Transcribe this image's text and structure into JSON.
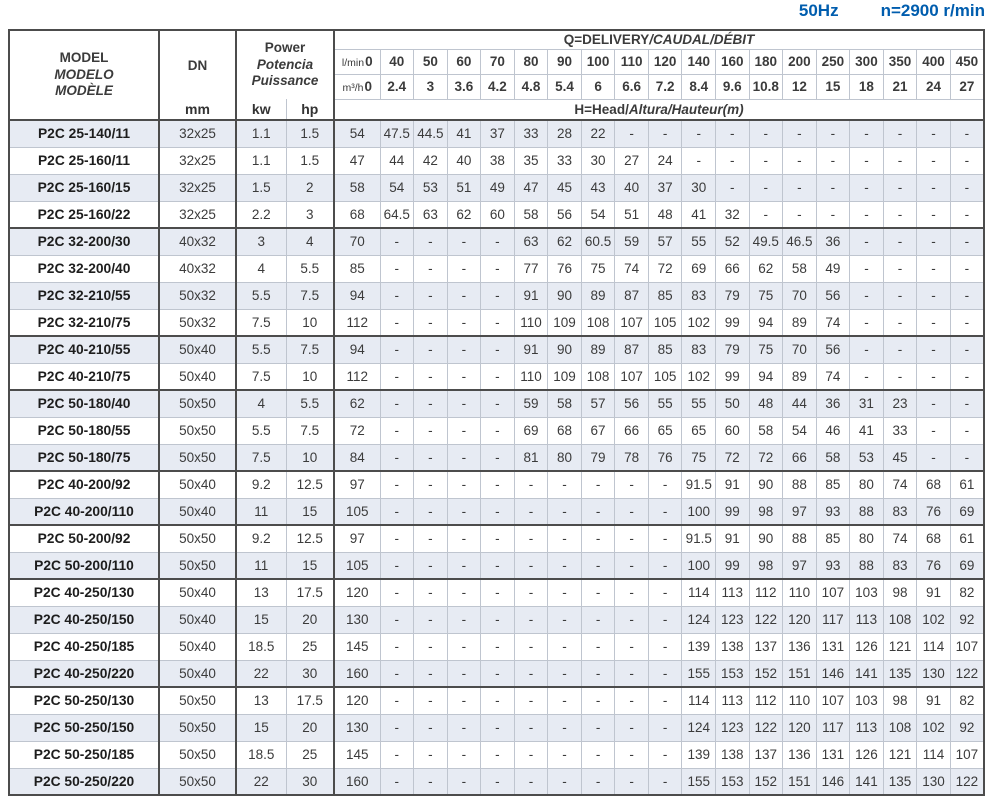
{
  "title": {
    "frequency": "50Hz",
    "speed": "n=2900 r/min"
  },
  "header": {
    "model_lines": [
      "MODEL",
      "MODELO",
      "MODÈLE"
    ],
    "dn_label": "DN",
    "dn_unit": "mm",
    "power_lines": [
      "Power",
      "Potencia",
      "Puissance"
    ],
    "power_units": [
      "kw",
      "hp"
    ],
    "delivery_plain": "Q=DELIVERY",
    "delivery_italic": "/CAUDAL/DÉBIT",
    "lmin_label": "l/min",
    "m3h_label": "m³/h",
    "lmin_values": [
      "0",
      "40",
      "50",
      "60",
      "70",
      "80",
      "90",
      "100",
      "110",
      "120",
      "140",
      "160",
      "180",
      "200",
      "250",
      "300",
      "350",
      "400",
      "450"
    ],
    "m3h_values": [
      "0",
      "2.4",
      "3",
      "3.6",
      "4.2",
      "4.8",
      "5.4",
      "6",
      "6.6",
      "7.2",
      "8.4",
      "9.6",
      "10.8",
      "12",
      "15",
      "18",
      "21",
      "24",
      "27"
    ],
    "head_plain": "H=Head/",
    "head_italic": "Altura/Hauteur(m)"
  },
  "rows": [
    {
      "model": "P2C 25-140/11",
      "dn": "32x25",
      "kw": "1.1",
      "hp": "1.5",
      "group_start": false,
      "heads": [
        "54",
        "47.5",
        "44.5",
        "41",
        "37",
        "33",
        "28",
        "22",
        "-",
        "-",
        "-",
        "-",
        "-",
        "-",
        "-",
        "-",
        "-",
        "-",
        "-"
      ]
    },
    {
      "model": "P2C 25-160/11",
      "dn": "32x25",
      "kw": "1.1",
      "hp": "1.5",
      "group_start": false,
      "heads": [
        "47",
        "44",
        "42",
        "40",
        "38",
        "35",
        "33",
        "30",
        "27",
        "24",
        "-",
        "-",
        "-",
        "-",
        "-",
        "-",
        "-",
        "-",
        "-"
      ]
    },
    {
      "model": "P2C 25-160/15",
      "dn": "32x25",
      "kw": "1.5",
      "hp": "2",
      "group_start": false,
      "heads": [
        "58",
        "54",
        "53",
        "51",
        "49",
        "47",
        "45",
        "43",
        "40",
        "37",
        "30",
        "-",
        "-",
        "-",
        "-",
        "-",
        "-",
        "-",
        "-"
      ]
    },
    {
      "model": "P2C 25-160/22",
      "dn": "32x25",
      "kw": "2.2",
      "hp": "3",
      "group_start": false,
      "heads": [
        "68",
        "64.5",
        "63",
        "62",
        "60",
        "58",
        "56",
        "54",
        "51",
        "48",
        "41",
        "32",
        "-",
        "-",
        "-",
        "-",
        "-",
        "-",
        "-"
      ]
    },
    {
      "model": "P2C 32-200/30",
      "dn": "40x32",
      "kw": "3",
      "hp": "4",
      "group_start": true,
      "heads": [
        "70",
        "-",
        "-",
        "-",
        "-",
        "63",
        "62",
        "60.5",
        "59",
        "57",
        "55",
        "52",
        "49.5",
        "46.5",
        "36",
        "-",
        "-",
        "-",
        "-"
      ]
    },
    {
      "model": "P2C 32-200/40",
      "dn": "40x32",
      "kw": "4",
      "hp": "5.5",
      "group_start": false,
      "heads": [
        "85",
        "-",
        "-",
        "-",
        "-",
        "77",
        "76",
        "75",
        "74",
        "72",
        "69",
        "66",
        "62",
        "58",
        "49",
        "-",
        "-",
        "-",
        "-"
      ]
    },
    {
      "model": "P2C 32-210/55",
      "dn": "50x32",
      "kw": "5.5",
      "hp": "7.5",
      "group_start": false,
      "heads": [
        "94",
        "-",
        "-",
        "-",
        "-",
        "91",
        "90",
        "89",
        "87",
        "85",
        "83",
        "79",
        "75",
        "70",
        "56",
        "-",
        "-",
        "-",
        "-"
      ]
    },
    {
      "model": "P2C 32-210/75",
      "dn": "50x32",
      "kw": "7.5",
      "hp": "10",
      "group_start": false,
      "heads": [
        "112",
        "-",
        "-",
        "-",
        "-",
        "110",
        "109",
        "108",
        "107",
        "105",
        "102",
        "99",
        "94",
        "89",
        "74",
        "-",
        "-",
        "-",
        "-"
      ]
    },
    {
      "model": "P2C 40-210/55",
      "dn": "50x40",
      "kw": "5.5",
      "hp": "7.5",
      "group_start": true,
      "heads": [
        "94",
        "-",
        "-",
        "-",
        "-",
        "91",
        "90",
        "89",
        "87",
        "85",
        "83",
        "79",
        "75",
        "70",
        "56",
        "-",
        "-",
        "-",
        "-"
      ]
    },
    {
      "model": "P2C 40-210/75",
      "dn": "50x40",
      "kw": "7.5",
      "hp": "10",
      "group_start": false,
      "heads": [
        "112",
        "-",
        "-",
        "-",
        "-",
        "110",
        "109",
        "108",
        "107",
        "105",
        "102",
        "99",
        "94",
        "89",
        "74",
        "-",
        "-",
        "-",
        "-"
      ]
    },
    {
      "model": "P2C 50-180/40",
      "dn": "50x50",
      "kw": "4",
      "hp": "5.5",
      "group_start": true,
      "heads": [
        "62",
        "-",
        "-",
        "-",
        "-",
        "59",
        "58",
        "57",
        "56",
        "55",
        "55",
        "50",
        "48",
        "44",
        "36",
        "31",
        "23",
        "-",
        "-"
      ]
    },
    {
      "model": "P2C 50-180/55",
      "dn": "50x50",
      "kw": "5.5",
      "hp": "7.5",
      "group_start": false,
      "heads": [
        "72",
        "-",
        "-",
        "-",
        "-",
        "69",
        "68",
        "67",
        "66",
        "65",
        "65",
        "60",
        "58",
        "54",
        "46",
        "41",
        "33",
        "-",
        "-"
      ]
    },
    {
      "model": "P2C 50-180/75",
      "dn": "50x50",
      "kw": "7.5",
      "hp": "10",
      "group_start": false,
      "heads": [
        "84",
        "-",
        "-",
        "-",
        "-",
        "81",
        "80",
        "79",
        "78",
        "76",
        "75",
        "72",
        "72",
        "66",
        "58",
        "53",
        "45",
        "-",
        "-"
      ]
    },
    {
      "model": "P2C 40-200/92",
      "dn": "50x40",
      "kw": "9.2",
      "hp": "12.5",
      "group_start": true,
      "heads": [
        "97",
        "-",
        "-",
        "-",
        "-",
        "-",
        "-",
        "-",
        "-",
        "-",
        "91.5",
        "91",
        "90",
        "88",
        "85",
        "80",
        "74",
        "68",
        "61"
      ]
    },
    {
      "model": "P2C 40-200/110",
      "dn": "50x40",
      "kw": "11",
      "hp": "15",
      "group_start": false,
      "heads": [
        "105",
        "-",
        "-",
        "-",
        "-",
        "-",
        "-",
        "-",
        "-",
        "-",
        "100",
        "99",
        "98",
        "97",
        "93",
        "88",
        "83",
        "76",
        "69"
      ]
    },
    {
      "model": "P2C 50-200/92",
      "dn": "50x50",
      "kw": "9.2",
      "hp": "12.5",
      "group_start": true,
      "heads": [
        "97",
        "-",
        "-",
        "-",
        "-",
        "-",
        "-",
        "-",
        "-",
        "-",
        "91.5",
        "91",
        "90",
        "88",
        "85",
        "80",
        "74",
        "68",
        "61"
      ]
    },
    {
      "model": "P2C 50-200/110",
      "dn": "50x50",
      "kw": "11",
      "hp": "15",
      "group_start": false,
      "heads": [
        "105",
        "-",
        "-",
        "-",
        "-",
        "-",
        "-",
        "-",
        "-",
        "-",
        "100",
        "99",
        "98",
        "97",
        "93",
        "88",
        "83",
        "76",
        "69"
      ]
    },
    {
      "model": "P2C 40-250/130",
      "dn": "50x40",
      "kw": "13",
      "hp": "17.5",
      "group_start": true,
      "heads": [
        "120",
        "-",
        "-",
        "-",
        "-",
        "-",
        "-",
        "-",
        "-",
        "-",
        "114",
        "113",
        "112",
        "110",
        "107",
        "103",
        "98",
        "91",
        "82"
      ]
    },
    {
      "model": "P2C 40-250/150",
      "dn": "50x40",
      "kw": "15",
      "hp": "20",
      "group_start": false,
      "heads": [
        "130",
        "-",
        "-",
        "-",
        "-",
        "-",
        "-",
        "-",
        "-",
        "-",
        "124",
        "123",
        "122",
        "120",
        "117",
        "113",
        "108",
        "102",
        "92"
      ]
    },
    {
      "model": "P2C 40-250/185",
      "dn": "50x40",
      "kw": "18.5",
      "hp": "25",
      "group_start": false,
      "heads": [
        "145",
        "-",
        "-",
        "-",
        "-",
        "-",
        "-",
        "-",
        "-",
        "-",
        "139",
        "138",
        "137",
        "136",
        "131",
        "126",
        "121",
        "114",
        "107"
      ]
    },
    {
      "model": "P2C 40-250/220",
      "dn": "50x40",
      "kw": "22",
      "hp": "30",
      "group_start": false,
      "heads": [
        "160",
        "-",
        "-",
        "-",
        "-",
        "-",
        "-",
        "-",
        "-",
        "-",
        "155",
        "153",
        "152",
        "151",
        "146",
        "141",
        "135",
        "130",
        "122"
      ]
    },
    {
      "model": "P2C 50-250/130",
      "dn": "50x50",
      "kw": "13",
      "hp": "17.5",
      "group_start": true,
      "heads": [
        "120",
        "-",
        "-",
        "-",
        "-",
        "-",
        "-",
        "-",
        "-",
        "-",
        "114",
        "113",
        "112",
        "110",
        "107",
        "103",
        "98",
        "91",
        "82"
      ]
    },
    {
      "model": "P2C 50-250/150",
      "dn": "50x50",
      "kw": "15",
      "hp": "20",
      "group_start": false,
      "heads": [
        "130",
        "-",
        "-",
        "-",
        "-",
        "-",
        "-",
        "-",
        "-",
        "-",
        "124",
        "123",
        "122",
        "120",
        "117",
        "113",
        "108",
        "102",
        "92"
      ]
    },
    {
      "model": "P2C 50-250/185",
      "dn": "50x50",
      "kw": "18.5",
      "hp": "25",
      "group_start": false,
      "heads": [
        "145",
        "-",
        "-",
        "-",
        "-",
        "-",
        "-",
        "-",
        "-",
        "-",
        "139",
        "138",
        "137",
        "136",
        "131",
        "126",
        "121",
        "114",
        "107"
      ]
    },
    {
      "model": "P2C 50-250/220",
      "dn": "50x50",
      "kw": "22",
      "hp": "30",
      "group_start": false,
      "heads": [
        "160",
        "-",
        "-",
        "-",
        "-",
        "-",
        "-",
        "-",
        "-",
        "-",
        "155",
        "153",
        "152",
        "151",
        "146",
        "141",
        "135",
        "130",
        "122"
      ]
    }
  ],
  "colors": {
    "accent_blue": "#005dae",
    "stripe": "#e7ebf3",
    "border_dark": "#4c4c4c",
    "border_light": "#bfc5cf"
  }
}
